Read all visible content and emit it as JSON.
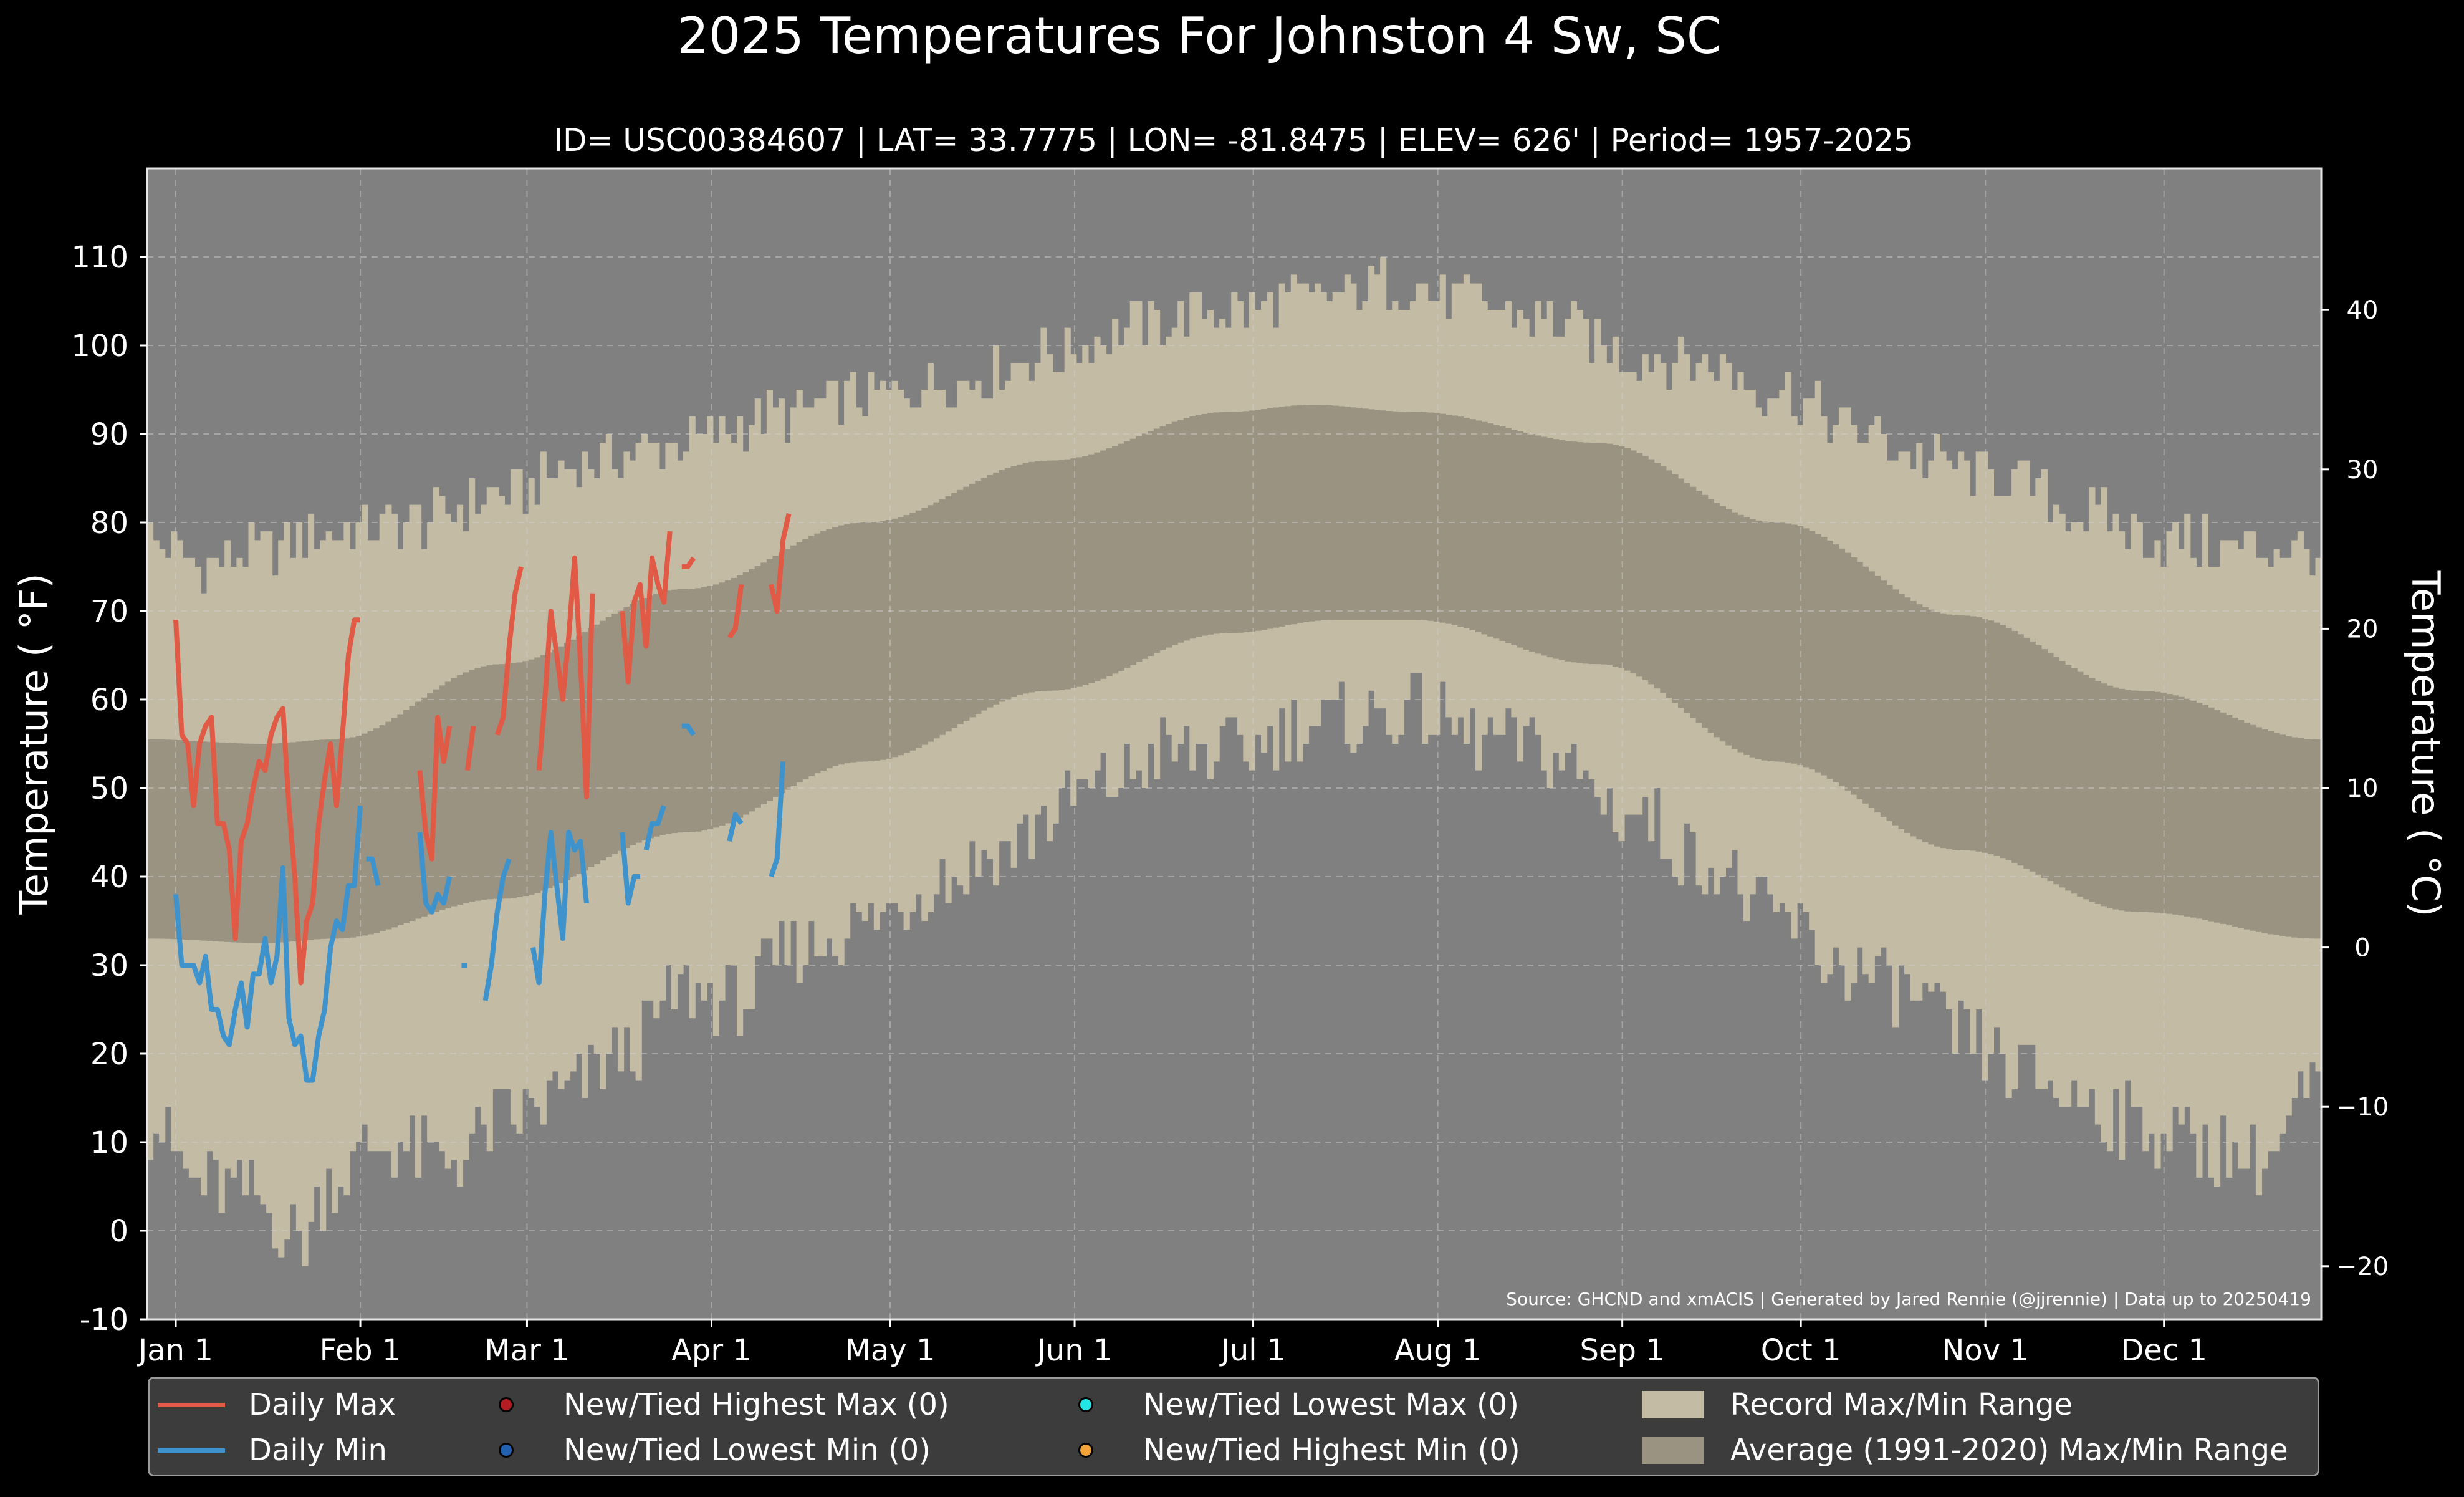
{
  "chart_data": {
    "type": "line",
    "title": "2025 Temperatures For Johnston 4 Sw, SC",
    "subtitle": "ID= USC00384607 | LAT= 33.7775 | LON= -81.8475 | ELEV= 626' | Period= 1957-2025",
    "ylabel": "Temperature ($^\\circ$F)",
    "ylabel_display": "Temperature ( °F)",
    "ylabel_right": "Temperature ( °C)",
    "source": "Source: GHCND and xmACIS | Generated by Jared Rennie (@jjrennie) | Data up to 20250419",
    "ylim": [
      -10,
      120
    ],
    "yticks": [
      -10,
      0,
      10,
      20,
      30,
      40,
      50,
      60,
      70,
      80,
      90,
      100,
      110
    ],
    "yticks_c": [
      -20,
      -10,
      0,
      10,
      20,
      30,
      40
    ],
    "x_tick_labels": [
      "Jan 1",
      "Feb 1",
      "Mar 1",
      "Apr 1",
      "May 1",
      "Jun 1",
      "Jul 1",
      "Aug 1",
      "Sep 1",
      "Oct 1",
      "Nov 1",
      "Dec 1"
    ],
    "x_tick_days": [
      1,
      32,
      60,
      91,
      121,
      152,
      182,
      213,
      244,
      274,
      305,
      335
    ],
    "grid": true,
    "legend_position": "below",
    "record_max_key": [
      [
        1,
        78
      ],
      [
        10,
        75
      ],
      [
        20,
        77
      ],
      [
        32,
        79
      ],
      [
        45,
        80
      ],
      [
        60,
        83
      ],
      [
        75,
        87
      ],
      [
        91,
        89
      ],
      [
        105,
        92
      ],
      [
        121,
        94
      ],
      [
        135,
        96
      ],
      [
        152,
        99
      ],
      [
        166,
        102
      ],
      [
        182,
        104
      ],
      [
        196,
        105
      ],
      [
        210,
        107
      ],
      [
        222,
        105
      ],
      [
        235,
        103
      ],
      [
        250,
        99
      ],
      [
        262,
        98
      ],
      [
        274,
        95
      ],
      [
        288,
        90
      ],
      [
        300,
        87
      ],
      [
        312,
        85
      ],
      [
        325,
        81
      ],
      [
        340,
        78
      ],
      [
        352,
        77
      ],
      [
        365,
        77
      ]
    ],
    "record_min_key": [
      [
        1,
        12
      ],
      [
        10,
        5
      ],
      [
        18,
        4
      ],
      [
        26,
        -1
      ],
      [
        32,
        6
      ],
      [
        40,
        10
      ],
      [
        50,
        8
      ],
      [
        60,
        12
      ],
      [
        70,
        15
      ],
      [
        80,
        20
      ],
      [
        91,
        27
      ],
      [
        100,
        26
      ],
      [
        110,
        32
      ],
      [
        121,
        35
      ],
      [
        135,
        40
      ],
      [
        145,
        43
      ],
      [
        152,
        47
      ],
      [
        160,
        50
      ],
      [
        172,
        54
      ],
      [
        182,
        54
      ],
      [
        195,
        57
      ],
      [
        205,
        58
      ],
      [
        213,
        59
      ],
      [
        222,
        56
      ],
      [
        235,
        54
      ],
      [
        250,
        47
      ],
      [
        262,
        42
      ],
      [
        274,
        35
      ],
      [
        285,
        30
      ],
      [
        295,
        27
      ],
      [
        305,
        22
      ],
      [
        315,
        18
      ],
      [
        325,
        15
      ],
      [
        335,
        12
      ],
      [
        345,
        10
      ],
      [
        355,
        8
      ],
      [
        365,
        16
      ]
    ],
    "avg_max_key": [
      [
        1,
        55.5
      ],
      [
        20,
        55
      ],
      [
        32,
        55.5
      ],
      [
        60,
        64
      ],
      [
        91,
        72.5
      ],
      [
        121,
        80
      ],
      [
        152,
        87
      ],
      [
        182,
        92.5
      ],
      [
        196,
        93.3
      ],
      [
        213,
        92.5
      ],
      [
        244,
        89
      ],
      [
        274,
        80
      ],
      [
        305,
        69.5
      ],
      [
        335,
        61
      ],
      [
        365,
        55.5
      ]
    ],
    "avg_min_key": [
      [
        1,
        33
      ],
      [
        20,
        32.5
      ],
      [
        32,
        33
      ],
      [
        60,
        37.5
      ],
      [
        91,
        45
      ],
      [
        121,
        53
      ],
      [
        152,
        61
      ],
      [
        182,
        67.5
      ],
      [
        200,
        69
      ],
      [
        213,
        69
      ],
      [
        244,
        64
      ],
      [
        274,
        53
      ],
      [
        305,
        43
      ],
      [
        335,
        36
      ],
      [
        365,
        33
      ]
    ],
    "series": [
      {
        "name": "Daily Max",
        "color": "#e05a46",
        "segments": [
          [
            [
              1,
              69
            ],
            [
              2,
              56
            ],
            [
              3,
              55
            ],
            [
              4,
              48
            ],
            [
              5,
              55
            ],
            [
              6,
              57
            ],
            [
              7,
              58
            ],
            [
              8,
              46
            ],
            [
              9,
              46
            ],
            [
              10,
              43
            ],
            [
              11,
              33
            ],
            [
              12,
              44
            ],
            [
              13,
              46
            ],
            [
              14,
              50
            ],
            [
              15,
              53
            ],
            [
              16,
              52
            ],
            [
              17,
              56
            ],
            [
              18,
              58
            ],
            [
              19,
              59
            ],
            [
              20,
              48
            ],
            [
              21,
              40
            ],
            [
              22,
              28
            ],
            [
              23,
              35
            ],
            [
              24,
              37
            ],
            [
              25,
              46
            ],
            [
              26,
              51
            ],
            [
              27,
              55
            ],
            [
              28,
              48
            ],
            [
              29,
              56
            ],
            [
              30,
              65
            ],
            [
              31,
              69
            ],
            [
              32,
              69
            ]
          ],
          [
            [
              42,
              52
            ],
            [
              43,
              45
            ],
            [
              44,
              42
            ],
            [
              45,
              58
            ],
            [
              46,
              53
            ],
            [
              47,
              57
            ]
          ],
          [
            [
              50,
              52
            ],
            [
              51,
              57
            ]
          ],
          [
            [
              55,
              56
            ],
            [
              56,
              58
            ],
            [
              57,
              66
            ],
            [
              58,
              72
            ],
            [
              59,
              75
            ]
          ],
          [
            [
              62,
              52
            ],
            [
              63,
              60
            ],
            [
              64,
              70
            ],
            [
              65,
              65
            ],
            [
              66,
              60
            ],
            [
              67,
              67
            ],
            [
              68,
              76
            ],
            [
              69,
              64
            ],
            [
              70,
              49
            ],
            [
              71,
              72
            ]
          ],
          [
            [
              76,
              70
            ],
            [
              77,
              62
            ],
            [
              78,
              71
            ],
            [
              79,
              73
            ],
            [
              80,
              66
            ],
            [
              81,
              76
            ],
            [
              82,
              73
            ],
            [
              83,
              71
            ],
            [
              84,
              79
            ]
          ],
          [
            [
              86,
              75
            ],
            [
              87,
              75
            ],
            [
              88,
              76
            ]
          ],
          [
            [
              94,
              67
            ],
            [
              95,
              68
            ],
            [
              96,
              73
            ]
          ],
          [
            [
              101,
              73
            ],
            [
              102,
              70
            ],
            [
              103,
              78
            ],
            [
              104,
              81
            ]
          ]
        ]
      },
      {
        "name": "Daily Min",
        "color": "#3f93cc",
        "segments": [
          [
            [
              1,
              38
            ],
            [
              2,
              30
            ],
            [
              3,
              30
            ],
            [
              4,
              30
            ],
            [
              5,
              28
            ],
            [
              6,
              31
            ],
            [
              7,
              25
            ],
            [
              8,
              25
            ],
            [
              9,
              22
            ],
            [
              10,
              21
            ],
            [
              11,
              25
            ],
            [
              12,
              28
            ],
            [
              13,
              23
            ],
            [
              14,
              29
            ],
            [
              15,
              29
            ],
            [
              16,
              33
            ],
            [
              17,
              28
            ],
            [
              18,
              31
            ],
            [
              19,
              41
            ],
            [
              20,
              24
            ],
            [
              21,
              21
            ],
            [
              22,
              22
            ],
            [
              23,
              17
            ],
            [
              24,
              17
            ],
            [
              25,
              22
            ],
            [
              26,
              25
            ],
            [
              27,
              32
            ],
            [
              28,
              35
            ],
            [
              29,
              34
            ],
            [
              30,
              39
            ],
            [
              31,
              39
            ],
            [
              32,
              48
            ]
          ],
          [
            [
              33,
              42
            ],
            [
              34,
              42
            ],
            [
              35,
              39
            ]
          ],
          [
            [
              42,
              45
            ],
            [
              43,
              37
            ],
            [
              44,
              36
            ],
            [
              45,
              38
            ],
            [
              46,
              37
            ],
            [
              47,
              40
            ]
          ],
          [
            [
              49,
              30
            ],
            [
              50,
              30
            ]
          ],
          [
            [
              53,
              26
            ],
            [
              54,
              30
            ],
            [
              55,
              36
            ],
            [
              56,
              40
            ],
            [
              57,
              42
            ]
          ],
          [
            [
              61,
              32
            ],
            [
              62,
              28
            ],
            [
              63,
              38
            ],
            [
              64,
              45
            ],
            [
              65,
              39
            ],
            [
              66,
              33
            ],
            [
              67,
              45
            ],
            [
              68,
              43
            ],
            [
              69,
              44
            ],
            [
              70,
              37
            ]
          ],
          [
            [
              76,
              45
            ],
            [
              77,
              37
            ],
            [
              78,
              40
            ],
            [
              79,
              40
            ]
          ],
          [
            [
              80,
              43
            ],
            [
              81,
              46
            ],
            [
              82,
              46
            ],
            [
              83,
              48
            ]
          ],
          [
            [
              86,
              57
            ],
            [
              87,
              57
            ],
            [
              88,
              56
            ]
          ],
          [
            [
              94,
              44
            ],
            [
              95,
              47
            ],
            [
              96,
              46
            ]
          ],
          [
            [
              101,
              40
            ],
            [
              102,
              42
            ],
            [
              103,
              53
            ]
          ]
        ]
      }
    ],
    "legend": [
      {
        "label": "Daily Max",
        "kind": "line",
        "color": "#e05a46"
      },
      {
        "label": "New/Tied Highest Max (0)",
        "kind": "dot",
        "color": "#b41c24"
      },
      {
        "label": "New/Tied Lowest Max (0)",
        "kind": "dot",
        "color": "#22e6e6"
      },
      {
        "label": "Record Max/Min Range",
        "kind": "rect",
        "color": "#c3bba4"
      },
      {
        "label": "Daily Min",
        "kind": "line",
        "color": "#3f93cc"
      },
      {
        "label": "New/Tied Lowest Min (0)",
        "kind": "dot",
        "color": "#2460b0"
      },
      {
        "label": "New/Tied Highest Min (0)",
        "kind": "dot",
        "color": "#f2a33a"
      },
      {
        "label": "Average (1991-2020) Max/Min Range",
        "kind": "rect",
        "color": "#9b9382"
      }
    ],
    "colors": {
      "background": "#000000",
      "plot_background": "#808080",
      "record_range": "#c3bba4",
      "average_range": "#9b9382"
    }
  }
}
